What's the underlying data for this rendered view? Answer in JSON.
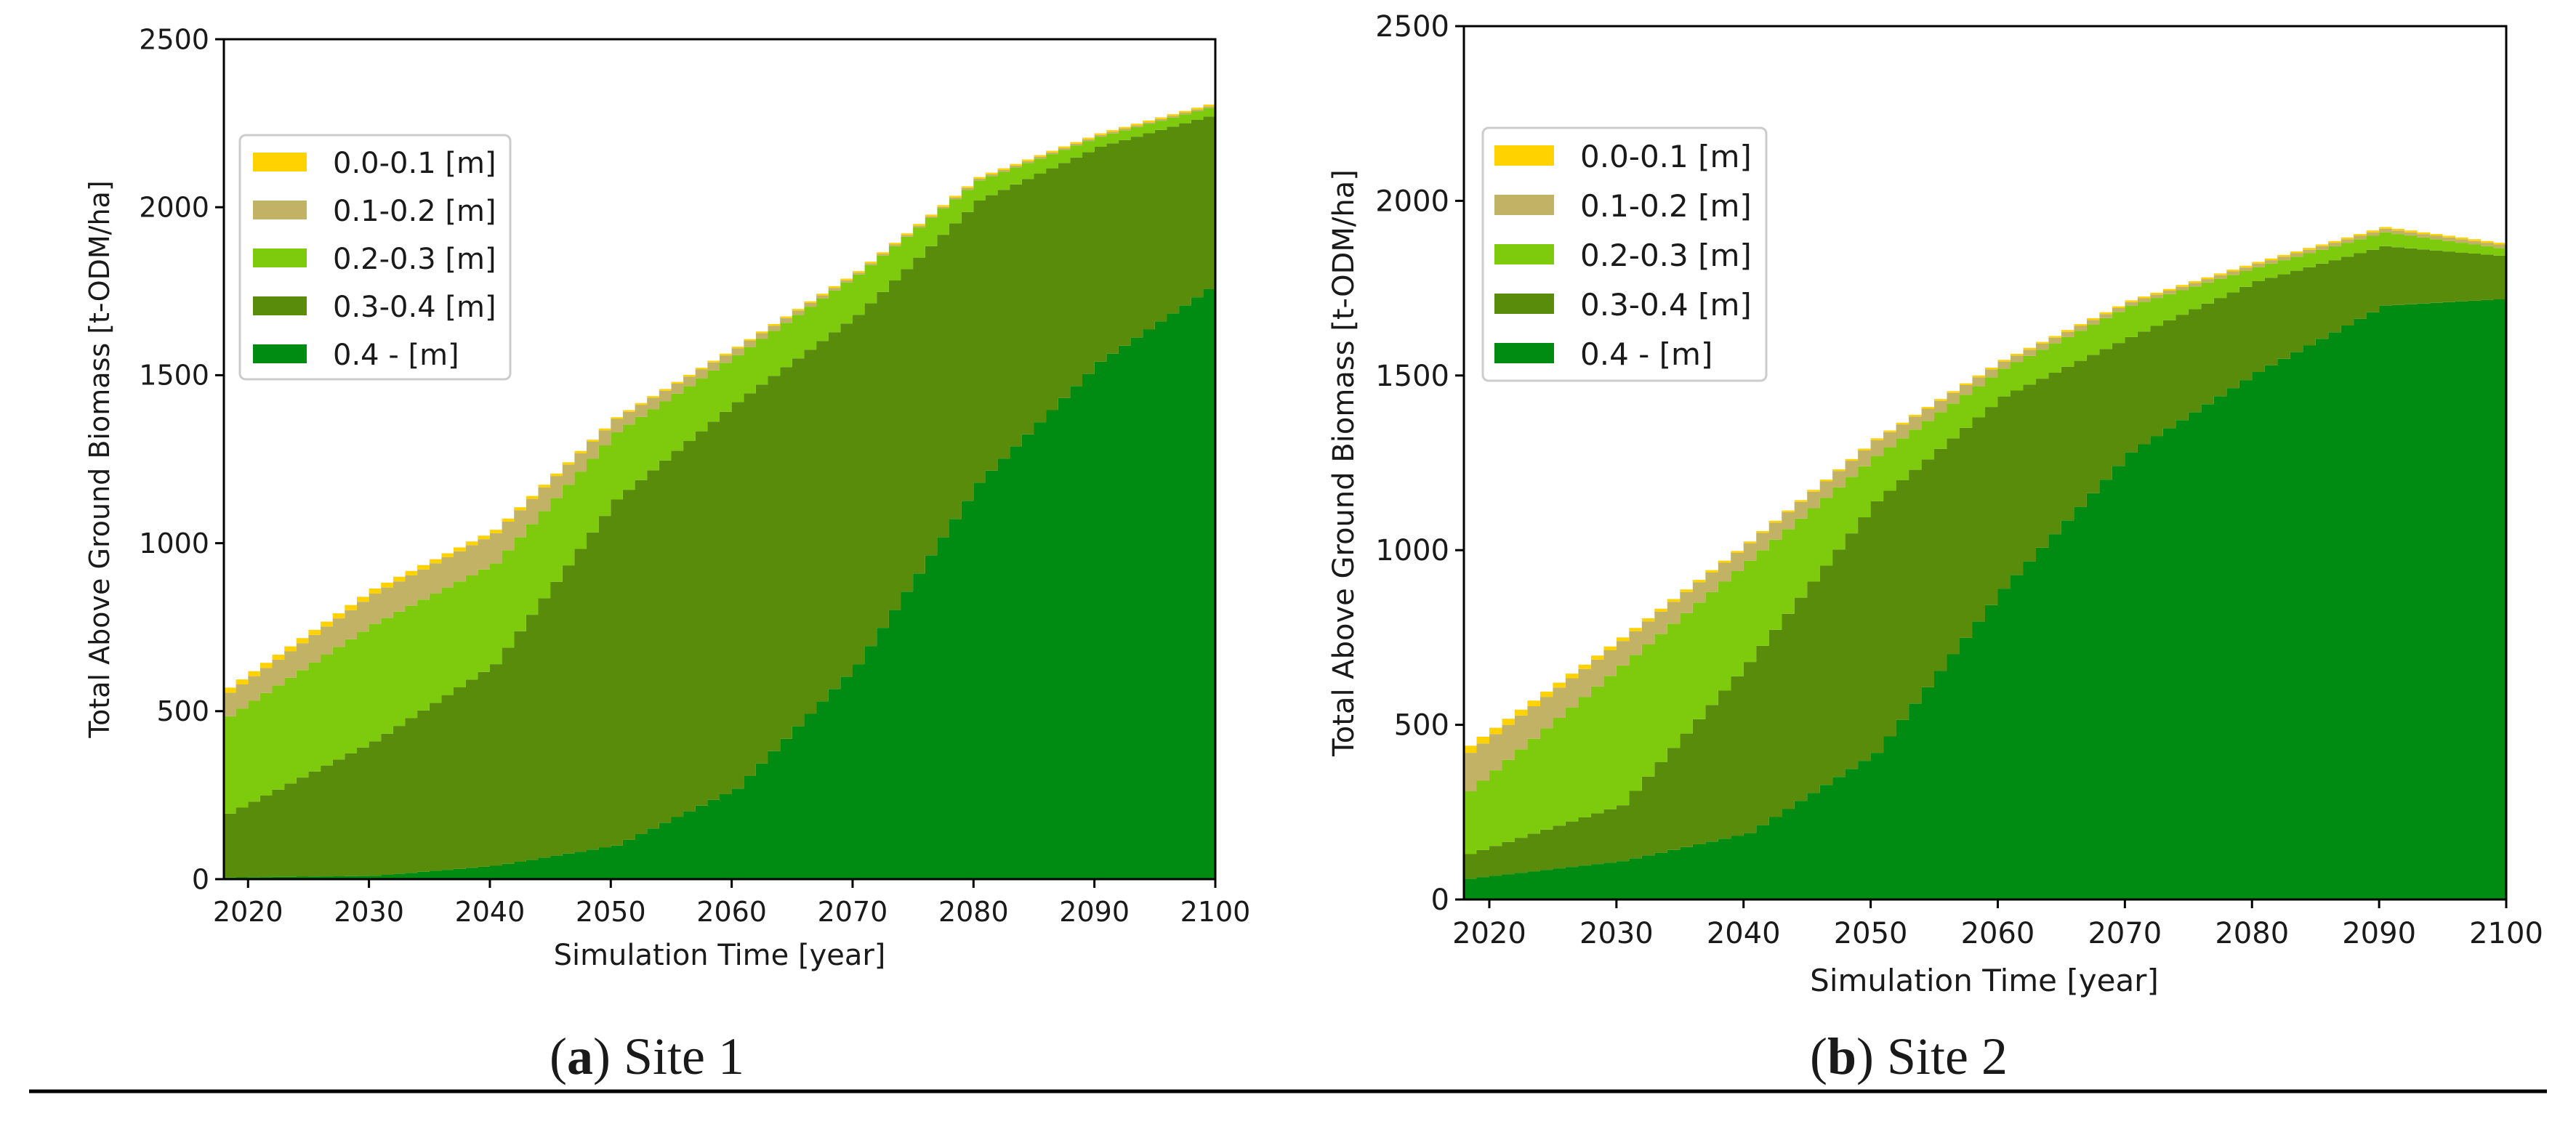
{
  "colors": {
    "layer_0": "#ffd200",
    "layer_1": "#c2b265",
    "layer_2": "#7ecb0d",
    "layer_3": "#5a8c0c",
    "layer_4": "#008c12",
    "axis": "#000000",
    "background": "#ffffff"
  },
  "chart_data": [
    {
      "type": "area",
      "panel_label": "a",
      "caption_text": "Site 1",
      "xlabel": "Simulation Time [year]",
      "ylabel": "Total Above Ground Biomass [t-ODM/ha]",
      "xlim": [
        2018,
        2100
      ],
      "ylim": [
        0,
        2500
      ],
      "xticks": [
        2020,
        2030,
        2040,
        2050,
        2060,
        2070,
        2080,
        2090,
        2100
      ],
      "yticks": [
        0,
        500,
        1000,
        1500,
        2000,
        2500
      ],
      "stacked": true,
      "step": true,
      "legend": {
        "position": "top-left",
        "entries": [
          "0.0-0.1 [m]",
          "0.1-0.2 [m]",
          "0.2-0.3 [m]",
          "0.3-0.4 [m]",
          "0.4 - [m]"
        ]
      },
      "x": [
        2018,
        2030,
        2040,
        2050,
        2060,
        2070,
        2080,
        2090,
        2100
      ],
      "series": [
        {
          "name": "0.4 - [m]",
          "values": [
            5,
            10,
            40,
            100,
            270,
            640,
            1180,
            1540,
            1780
          ]
        },
        {
          "name": "0.3-0.4 [m]",
          "values": [
            190,
            400,
            600,
            1030,
            1150,
            1040,
            840,
            640,
            500
          ]
        },
        {
          "name": "0.2-0.3 [m]",
          "values": [
            290,
            350,
            300,
            200,
            140,
            120,
            60,
            30,
            25
          ]
        },
        {
          "name": "0.1-0.2 [m]",
          "values": [
            70,
            90,
            90,
            40,
            20,
            5,
            5,
            5,
            5
          ]
        },
        {
          "name": "0.0-0.1 [m]",
          "values": [
            15,
            15,
            10,
            5,
            5,
            5,
            5,
            5,
            5
          ]
        }
      ]
    },
    {
      "type": "area",
      "panel_label": "b",
      "caption_text": "Site 2",
      "xlabel": "Simulation Time [year]",
      "ylabel": "Total Above Ground Biomass [t-ODM/ha]",
      "xlim": [
        2018,
        2100
      ],
      "ylim": [
        0,
        2500
      ],
      "xticks": [
        2020,
        2030,
        2040,
        2050,
        2060,
        2070,
        2080,
        2090,
        2100
      ],
      "yticks": [
        0,
        500,
        1000,
        1500,
        2000,
        2500
      ],
      "stacked": true,
      "step": true,
      "legend": {
        "position": "top-left",
        "entries": [
          "0.0-0.1 [m]",
          "0.1-0.2 [m]",
          "0.2-0.3 [m]",
          "0.3-0.4 [m]",
          "0.4 - [m]"
        ]
      },
      "x": [
        2018,
        2030,
        2040,
        2050,
        2060,
        2070,
        2080,
        2090,
        2100
      ],
      "series": [
        {
          "name": "0.4 - [m]",
          "values": [
            60,
            110,
            190,
            420,
            890,
            1280,
            1510,
            1700,
            1720
          ]
        },
        {
          "name": "0.3-0.4 [m]",
          "values": [
            70,
            160,
            490,
            720,
            550,
            330,
            260,
            170,
            120
          ]
        },
        {
          "name": "0.2-0.3 [m]",
          "values": [
            180,
            400,
            290,
            130,
            80,
            90,
            40,
            40,
            20
          ]
        },
        {
          "name": "0.1-0.2 [m]",
          "values": [
            110,
            70,
            50,
            45,
            20,
            10,
            10,
            10,
            10
          ]
        },
        {
          "name": "0.0-0.1 [m]",
          "values": [
            20,
            10,
            5,
            5,
            5,
            5,
            5,
            5,
            5
          ]
        }
      ]
    }
  ]
}
